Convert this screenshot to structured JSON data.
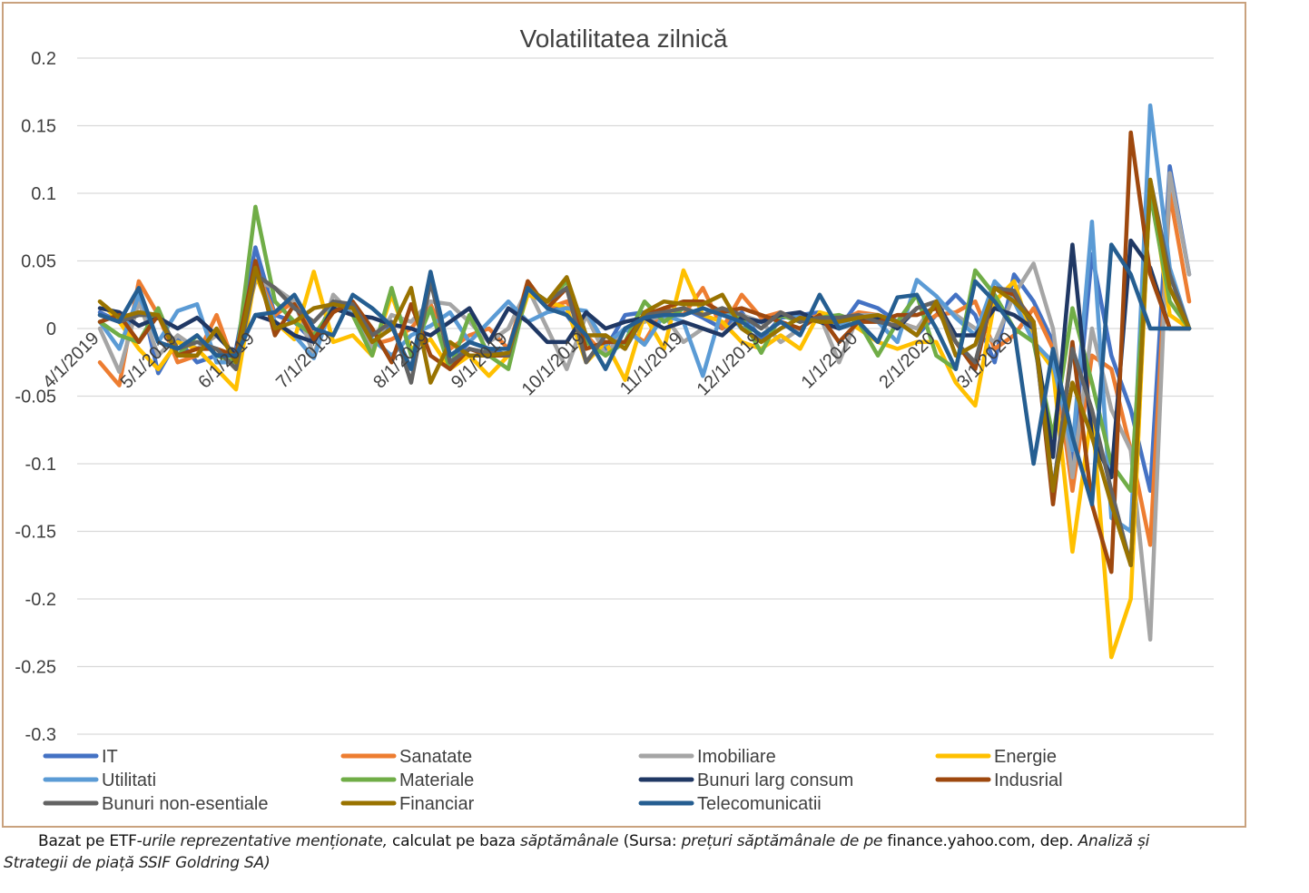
{
  "chart_data": {
    "type": "line",
    "title": "Volatilitatea zilnică",
    "xlabel": "",
    "ylabel": "",
    "ylim": [
      -0.3,
      0.2
    ],
    "yticks": [
      "0.2",
      "0.15",
      "0.1",
      "0.05",
      "0",
      "-0.05",
      "-0.1",
      "-0.15",
      "-0.2",
      "-0.25",
      "-0.3"
    ],
    "ytick_values": [
      0.2,
      0.15,
      0.1,
      0.05,
      0,
      -0.05,
      -0.1,
      -0.15,
      -0.2,
      -0.25,
      -0.3
    ],
    "xticks": [
      "4/1/2019",
      "5/1/2019",
      "6/1/2019",
      "7/1/2019",
      "8/1/2019",
      "9/1/2019",
      "10/1/2019",
      "11/1/2019",
      "12/1/2019",
      "1/1/2020",
      "2/1/2020",
      "3/1/2020"
    ],
    "xtick_week_index": [
      0,
      4,
      8,
      12,
      17,
      21,
      25,
      30,
      34,
      39,
      43,
      47
    ],
    "weeks": 57,
    "grid": true,
    "legend_position": "bottom",
    "series": [
      {
        "name": "IT",
        "color": "#4472c4",
        "values": [
          0.012,
          0.005,
          0.03,
          -0.033,
          -0.008,
          -0.025,
          -0.02,
          -0.015,
          0.06,
          0.01,
          0.005,
          -0.01,
          0.02,
          0.015,
          -0.005,
          0.002,
          -0.03,
          0.04,
          -0.025,
          -0.01,
          -0.015,
          -0.02,
          0.03,
          0.02,
          0.01,
          -0.01,
          -0.015,
          0.01,
          0.012,
          0.01,
          0.015,
          0.008,
          0.0,
          0.012,
          -0.008,
          0.008,
          0.01,
          0.012,
          0.0,
          0.02,
          0.015,
          0.005,
          -0.005,
          0.01,
          0.025,
          0.01,
          -0.025,
          0.04,
          0.02,
          -0.01,
          -0.1,
          0.055,
          -0.02,
          -0.06,
          -0.12,
          0.12,
          0.04
        ]
      },
      {
        "name": "Sanatate",
        "color": "#ed7d31",
        "values": [
          -0.025,
          -0.042,
          0.035,
          0.01,
          -0.025,
          -0.02,
          0.01,
          -0.03,
          0.045,
          0.01,
          0.02,
          -0.005,
          0.015,
          0.01,
          -0.012,
          -0.008,
          0.0,
          0.018,
          -0.015,
          -0.005,
          0.0,
          -0.015,
          0.035,
          0.015,
          0.02,
          -0.005,
          -0.02,
          0.0,
          -0.01,
          0.015,
          0.01,
          0.03,
          0.0,
          0.025,
          0.008,
          0.012,
          0.005,
          0.01,
          0.005,
          0.012,
          0.01,
          0.005,
          0.0,
          0.01,
          0.012,
          0.02,
          -0.015,
          -0.005,
          0.015,
          -0.015,
          -0.12,
          -0.02,
          -0.03,
          -0.09,
          -0.16,
          0.1,
          0.02
        ]
      },
      {
        "name": "Imobiliare",
        "color": "#a5a5a5",
        "values": [
          0.0,
          -0.032,
          0.02,
          -0.02,
          -0.005,
          -0.015,
          -0.005,
          -0.02,
          0.035,
          0.03,
          0.02,
          -0.02,
          0.025,
          0.01,
          -0.015,
          0.01,
          0.005,
          0.02,
          0.018,
          0.005,
          -0.01,
          0.0,
          0.03,
          0.0,
          -0.03,
          0.01,
          -0.02,
          0.0,
          0.005,
          0.01,
          -0.01,
          0.0,
          -0.005,
          0.01,
          0.005,
          -0.01,
          0.0,
          0.01,
          -0.025,
          0.01,
          0.01,
          0.005,
          0.0,
          0.02,
          0.01,
          0.0,
          -0.01,
          0.025,
          0.048,
          0.0,
          -0.11,
          0.0,
          -0.06,
          -0.09,
          -0.23,
          0.115,
          0.04
        ]
      },
      {
        "name": "Energie",
        "color": "#ffc000",
        "values": [
          0.02,
          0.005,
          -0.015,
          -0.03,
          -0.01,
          -0.015,
          -0.03,
          -0.045,
          0.04,
          0.005,
          -0.008,
          0.042,
          -0.01,
          -0.005,
          -0.02,
          0.025,
          -0.015,
          -0.008,
          -0.03,
          -0.02,
          -0.035,
          -0.02,
          0.025,
          0.02,
          0.015,
          -0.025,
          -0.01,
          -0.038,
          0.01,
          -0.015,
          0.043,
          0.01,
          0.005,
          -0.01,
          -0.015,
          -0.005,
          -0.015,
          0.012,
          0.008,
          0.0,
          -0.01,
          -0.015,
          -0.01,
          -0.01,
          -0.04,
          -0.057,
          0.02,
          0.035,
          -0.01,
          -0.03,
          -0.165,
          -0.06,
          -0.243,
          -0.2,
          0.11,
          0.01,
          0.0
        ]
      },
      {
        "name": "Utilitati",
        "color": "#5b9bd5",
        "values": [
          0.005,
          -0.015,
          0.025,
          -0.01,
          0.013,
          0.018,
          -0.025,
          -0.025,
          0.045,
          0.005,
          -0.005,
          -0.022,
          0.02,
          0.01,
          -0.008,
          -0.02,
          -0.005,
          0.002,
          0.012,
          -0.01,
          0.005,
          0.02,
          0.005,
          0.012,
          0.015,
          0.013,
          -0.012,
          0.0,
          -0.012,
          0.01,
          0.005,
          -0.035,
          0.015,
          0.0,
          0.005,
          0.01,
          0.008,
          0.005,
          0.002,
          0.01,
          0.005,
          -0.01,
          0.036,
          0.024,
          0.008,
          -0.005,
          0.035,
          0.02,
          -0.01,
          -0.025,
          -0.09,
          0.079,
          -0.14,
          -0.15,
          0.165,
          0.045,
          0.0
        ]
      },
      {
        "name": "Materiale",
        "color": "#70ad47",
        "values": [
          0.005,
          -0.005,
          -0.01,
          0.015,
          -0.02,
          -0.005,
          -0.02,
          -0.025,
          0.09,
          0.02,
          0.005,
          -0.005,
          0.015,
          0.01,
          -0.02,
          0.03,
          -0.02,
          0.015,
          -0.03,
          0.01,
          -0.02,
          -0.03,
          0.03,
          0.02,
          0.035,
          -0.01,
          -0.02,
          -0.01,
          0.02,
          0.005,
          0.015,
          0.01,
          0.015,
          0.008,
          -0.018,
          0.01,
          0.005,
          0.008,
          0.01,
          0.005,
          -0.02,
          0.005,
          0.025,
          -0.02,
          -0.03,
          0.043,
          0.025,
          0.0,
          -0.01,
          -0.08,
          0.015,
          -0.04,
          -0.1,
          -0.12,
          0.1,
          0.02,
          0.0
        ]
      },
      {
        "name": "Bunuri larg consum",
        "color": "#203864",
        "values": [
          0.015,
          0.012,
          0.002,
          0.008,
          0.0,
          0.008,
          -0.005,
          -0.02,
          0.01,
          0.005,
          -0.005,
          -0.01,
          0.015,
          0.01,
          0.008,
          0.003,
          0.0,
          -0.005,
          0.005,
          0.015,
          -0.01,
          0.015,
          0.005,
          -0.01,
          -0.01,
          0.012,
          0.0,
          0.005,
          0.008,
          0.0,
          0.005,
          0.0,
          -0.005,
          0.008,
          0.005,
          0.01,
          0.012,
          0.005,
          0.0,
          0.005,
          0.008,
          0.0,
          0.015,
          0.02,
          -0.005,
          -0.005,
          0.015,
          0.01,
          0.0,
          -0.095,
          0.062,
          -0.08,
          -0.11,
          0.065,
          0.045,
          0.0,
          0.0
        ]
      },
      {
        "name": "Indusrial",
        "color": "#9e480e",
        "values": [
          0.005,
          0.01,
          -0.01,
          0.01,
          -0.02,
          -0.015,
          -0.015,
          -0.02,
          0.05,
          -0.005,
          0.018,
          -0.008,
          0.012,
          0.02,
          0.0,
          -0.025,
          0.018,
          -0.02,
          -0.03,
          -0.015,
          -0.02,
          -0.02,
          0.035,
          0.015,
          0.03,
          -0.015,
          -0.01,
          -0.01,
          0.01,
          0.015,
          0.02,
          0.02,
          0.012,
          0.015,
          0.01,
          0.005,
          0.0,
          0.01,
          -0.01,
          0.005,
          0.005,
          0.01,
          0.01,
          0.015,
          -0.01,
          -0.03,
          0.03,
          0.025,
          0.005,
          -0.13,
          -0.01,
          -0.13,
          -0.18,
          0.145,
          0.04,
          0.0,
          0.0
        ]
      },
      {
        "name": "Bunuri non-esentiale",
        "color": "#636363",
        "values": [
          0.01,
          0.005,
          0.01,
          0.01,
          -0.015,
          -0.01,
          -0.015,
          -0.03,
          0.04,
          0.03,
          0.015,
          0.005,
          0.02,
          0.018,
          -0.005,
          0.005,
          -0.04,
          0.035,
          -0.025,
          -0.015,
          -0.018,
          -0.02,
          0.03,
          0.02,
          0.03,
          -0.025,
          -0.005,
          -0.015,
          0.01,
          0.012,
          0.015,
          0.01,
          0.015,
          0.01,
          0.0,
          0.012,
          0.005,
          0.008,
          0.008,
          0.01,
          0.005,
          0.002,
          0.015,
          0.02,
          -0.01,
          -0.025,
          0.03,
          0.028,
          0.0,
          -0.12,
          -0.015,
          -0.06,
          -0.12,
          -0.175,
          0.11,
          0.04,
          0.0
        ]
      },
      {
        "name": "Financiar",
        "color": "#997300",
        "values": [
          0.02,
          0.008,
          0.012,
          0.01,
          -0.02,
          -0.02,
          0.0,
          -0.025,
          0.045,
          0.0,
          0.005,
          0.015,
          0.018,
          0.015,
          -0.01,
          0.0,
          0.03,
          -0.04,
          -0.01,
          -0.02,
          -0.02,
          -0.018,
          0.03,
          0.02,
          0.038,
          -0.005,
          -0.005,
          -0.015,
          0.012,
          0.02,
          0.018,
          0.018,
          0.025,
          0.0,
          -0.01,
          0.0,
          0.008,
          0.005,
          0.005,
          0.008,
          0.01,
          0.005,
          -0.005,
          0.02,
          -0.02,
          -0.012,
          0.03,
          0.02,
          0.005,
          -0.12,
          -0.04,
          -0.08,
          -0.13,
          -0.175,
          0.11,
          0.03,
          0.0
        ]
      },
      {
        "name": "Telecomunicatii",
        "color": "#255e91",
        "values": [
          0.01,
          0.005,
          0.03,
          -0.01,
          -0.015,
          -0.005,
          -0.02,
          -0.02,
          0.01,
          0.012,
          0.025,
          0.0,
          -0.005,
          0.025,
          0.015,
          0.002,
          -0.03,
          0.042,
          -0.02,
          -0.01,
          -0.015,
          -0.015,
          0.03,
          0.015,
          0.01,
          -0.005,
          -0.03,
          0.0,
          0.008,
          0.01,
          0.01,
          0.015,
          0.01,
          0.005,
          -0.005,
          0.005,
          -0.005,
          0.025,
          0.0,
          0.005,
          -0.01,
          0.023,
          0.025,
          0.0,
          -0.03,
          0.035,
          0.02,
          0.0,
          -0.1,
          -0.015,
          -0.08,
          -0.13,
          0.062,
          0.04,
          0.0,
          0.0,
          0.0
        ]
      }
    ]
  },
  "caption": {
    "line1_a": "Bazat pe ETF-",
    "line1_b": "urile reprezentative menționate, ",
    "line1_c": "calculat pe baza",
    "line1_d": " săptămânale  ",
    "line1_e": "(Sursa: ",
    "line1_f": "prețuri săptămânale de pe ",
    "line1_g": "finance.yahoo.com, dep.",
    "line1_h": " Analiză și",
    "line2": "Strategii de piață SSIF Goldring SA)"
  }
}
